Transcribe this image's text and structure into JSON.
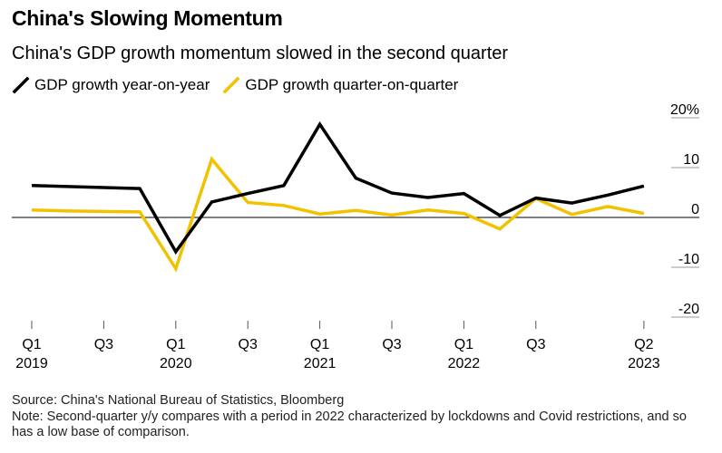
{
  "title": "China's Slowing Momentum",
  "subtitle": "China's GDP growth momentum slowed in the second quarter",
  "colors": {
    "yoy": "#000000",
    "qoq": "#f2c200",
    "zero_line": "#000000",
    "tick": "#555555"
  },
  "chart_data": {
    "type": "line",
    "title": "China's Slowing Momentum",
    "subtitle": "China's GDP growth momentum slowed in the second quarter",
    "xlabel": "",
    "ylabel": "",
    "ylim": [
      -20,
      20
    ],
    "y_ticks": [
      {
        "value": 20,
        "label": "20%"
      },
      {
        "value": 10,
        "label": "10"
      },
      {
        "value": 0,
        "label": "0"
      },
      {
        "value": -10,
        "label": "-10"
      },
      {
        "value": -20,
        "label": "-20"
      }
    ],
    "y_axis_position": "right",
    "grid": false,
    "legend_position": "top-left",
    "categories": [
      "Q1 2019",
      "Q2 2019",
      "Q3 2019",
      "Q4 2019",
      "Q1 2020",
      "Q2 2020",
      "Q3 2020",
      "Q4 2020",
      "Q1 2021",
      "Q2 2021",
      "Q3 2021",
      "Q4 2021",
      "Q1 2022",
      "Q2 2022",
      "Q3 2022",
      "Q4 2022",
      "Q1 2023",
      "Q2 2023"
    ],
    "x_ticks": [
      {
        "index": 0,
        "label1": "Q1",
        "label2": "2019"
      },
      {
        "index": 2,
        "label1": "Q3",
        "label2": ""
      },
      {
        "index": 4,
        "label1": "Q1",
        "label2": "2020"
      },
      {
        "index": 6,
        "label1": "Q3",
        "label2": ""
      },
      {
        "index": 8,
        "label1": "Q1",
        "label2": "2021"
      },
      {
        "index": 10,
        "label1": "Q3",
        "label2": ""
      },
      {
        "index": 12,
        "label1": "Q1",
        "label2": "2022"
      },
      {
        "index": 14,
        "label1": "Q3",
        "label2": ""
      },
      {
        "index": 17,
        "label1": "Q2",
        "label2": "2023"
      }
    ],
    "series": [
      {
        "name": "GDP growth year-on-year",
        "key": "yoy",
        "values": [
          6.4,
          6.2,
          6.0,
          5.8,
          -6.9,
          3.1,
          4.8,
          6.4,
          18.7,
          7.9,
          4.9,
          4.0,
          4.8,
          0.4,
          3.9,
          2.9,
          4.5,
          6.3
        ]
      },
      {
        "name": "GDP growth quarter-on-quarter",
        "key": "qoq",
        "values": [
          1.5,
          1.3,
          1.2,
          1.1,
          -10.3,
          11.7,
          3.0,
          2.4,
          0.7,
          1.4,
          0.5,
          1.5,
          0.8,
          -2.3,
          3.8,
          0.6,
          2.2,
          0.8
        ]
      }
    ]
  },
  "footnote": {
    "source": "Source: China's National Bureau of Statistics, Bloomberg",
    "note": "Note: Second-quarter y/y compares with a period in 2022 characterized by lockdowns and Covid restrictions, and so has a low base of comparison."
  }
}
